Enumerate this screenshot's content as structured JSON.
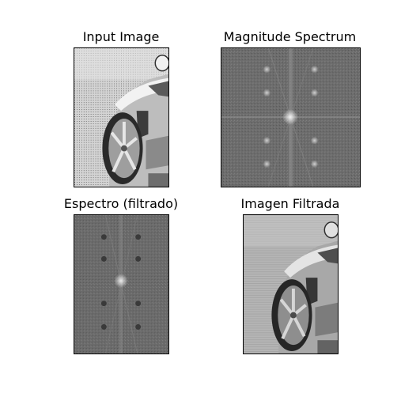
{
  "figure": {
    "panels": [
      {
        "title": "Input Image"
      },
      {
        "title": "Magnitude Spectrum"
      },
      {
        "title": "Espectro (filtrado)"
      },
      {
        "title": "Imagen Filtrada"
      }
    ]
  },
  "colors": {
    "background": "#ffffff",
    "frame": "#000000",
    "spectrum_gray": "#6e6e6e",
    "image_light": "#d8d8d8"
  }
}
